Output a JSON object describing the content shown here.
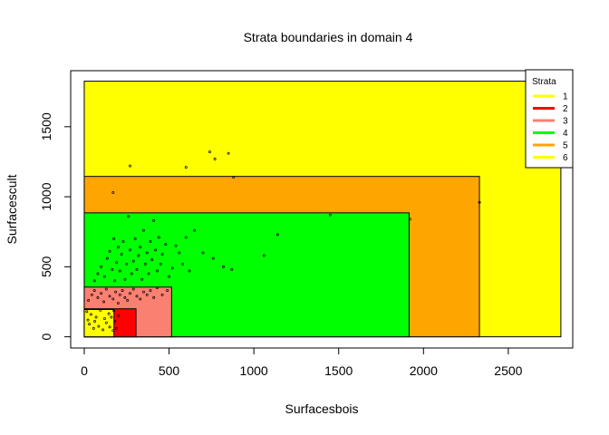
{
  "chart_data": {
    "type": "scatter",
    "title": "Strata boundaries in domain 4",
    "xlabel": "Surfacesbois",
    "ylabel": "Surfacescult",
    "xlim": [
      -80,
      2880
    ],
    "ylim": [
      -80,
      1900
    ],
    "xticks": [
      0,
      500,
      1000,
      1500,
      2000,
      2500
    ],
    "yticks": [
      0,
      500,
      1000,
      1500
    ],
    "legend": {
      "title": "Strata",
      "position": "top-right",
      "items": [
        {
          "label": "1",
          "color": "#FFFF00"
        },
        {
          "label": "2",
          "color": "#FF0000"
        },
        {
          "label": "3",
          "color": "#FA8072"
        },
        {
          "label": "4",
          "color": "#00FF00"
        },
        {
          "label": "5",
          "color": "#FFA500"
        },
        {
          "label": "6",
          "color": "#FFFF00"
        }
      ]
    },
    "strata": [
      {
        "name": "6",
        "xmax": 2810,
        "ymax": 1825,
        "color": "#FFFF00"
      },
      {
        "name": "5",
        "xmax": 2330,
        "ymax": 1145,
        "color": "#FFA500"
      },
      {
        "name": "4",
        "xmax": 1915,
        "ymax": 885,
        "color": "#00FF00"
      },
      {
        "name": "3",
        "xmax": 515,
        "ymax": 355,
        "color": "#FA8072"
      },
      {
        "name": "2",
        "xmax": 305,
        "ymax": 200,
        "color": "#FF0000"
      },
      {
        "name": "1",
        "xmax": 175,
        "ymax": 195,
        "color": "#FFFF00"
      }
    ],
    "points": [
      [
        15,
        180
      ],
      [
        22,
        120
      ],
      [
        30,
        90
      ],
      [
        40,
        160
      ],
      [
        55,
        60
      ],
      [
        62,
        110
      ],
      [
        70,
        140
      ],
      [
        85,
        75
      ],
      [
        95,
        190
      ],
      [
        110,
        50
      ],
      [
        120,
        130
      ],
      [
        130,
        100
      ],
      [
        145,
        165
      ],
      [
        150,
        70
      ],
      [
        160,
        140
      ],
      [
        170,
        45
      ],
      [
        175,
        185
      ],
      [
        180,
        110
      ],
      [
        190,
        60
      ],
      [
        200,
        150
      ],
      [
        25,
        260
      ],
      [
        45,
        300
      ],
      [
        60,
        330
      ],
      [
        80,
        280
      ],
      [
        100,
        310
      ],
      [
        115,
        250
      ],
      [
        130,
        340
      ],
      [
        150,
        290
      ],
      [
        170,
        270
      ],
      [
        185,
        320
      ],
      [
        200,
        240
      ],
      [
        210,
        300
      ],
      [
        225,
        330
      ],
      [
        240,
        280
      ],
      [
        255,
        260
      ],
      [
        270,
        310
      ],
      [
        290,
        340
      ],
      [
        310,
        290
      ],
      [
        330,
        270
      ],
      [
        350,
        320
      ],
      [
        370,
        300
      ],
      [
        390,
        330
      ],
      [
        410,
        280
      ],
      [
        430,
        350
      ],
      [
        460,
        300
      ],
      [
        490,
        330
      ],
      [
        60,
        400
      ],
      [
        80,
        450
      ],
      [
        100,
        500
      ],
      [
        120,
        430
      ],
      [
        135,
        560
      ],
      [
        150,
        610
      ],
      [
        165,
        480
      ],
      [
        175,
        700
      ],
      [
        180,
        400
      ],
      [
        190,
        530
      ],
      [
        200,
        640
      ],
      [
        210,
        470
      ],
      [
        220,
        590
      ],
      [
        230,
        680
      ],
      [
        240,
        410
      ],
      [
        250,
        520
      ],
      [
        260,
        860
      ],
      [
        270,
        620
      ],
      [
        280,
        450
      ],
      [
        290,
        540
      ],
      [
        300,
        700
      ],
      [
        310,
        480
      ],
      [
        320,
        580
      ],
      [
        330,
        640
      ],
      [
        340,
        410
      ],
      [
        350,
        760
      ],
      [
        360,
        520
      ],
      [
        370,
        600
      ],
      [
        380,
        450
      ],
      [
        390,
        680
      ],
      [
        400,
        550
      ],
      [
        410,
        830
      ],
      [
        420,
        620
      ],
      [
        430,
        470
      ],
      [
        440,
        710
      ],
      [
        450,
        520
      ],
      [
        460,
        590
      ],
      [
        480,
        660
      ],
      [
        500,
        430
      ],
      [
        520,
        490
      ],
      [
        540,
        650
      ],
      [
        560,
        600
      ],
      [
        580,
        520
      ],
      [
        600,
        710
      ],
      [
        620,
        470
      ],
      [
        650,
        760
      ],
      [
        700,
        600
      ],
      [
        760,
        560
      ],
      [
        820,
        500
      ],
      [
        870,
        480
      ],
      [
        1060,
        580
      ],
      [
        1140,
        730
      ],
      [
        1450,
        870
      ],
      [
        1920,
        840
      ],
      [
        170,
        1030
      ],
      [
        270,
        1220
      ],
      [
        600,
        1210
      ],
      [
        740,
        1320
      ],
      [
        770,
        1270
      ],
      [
        850,
        1310
      ],
      [
        880,
        1140
      ],
      [
        2330,
        960
      ]
    ]
  }
}
